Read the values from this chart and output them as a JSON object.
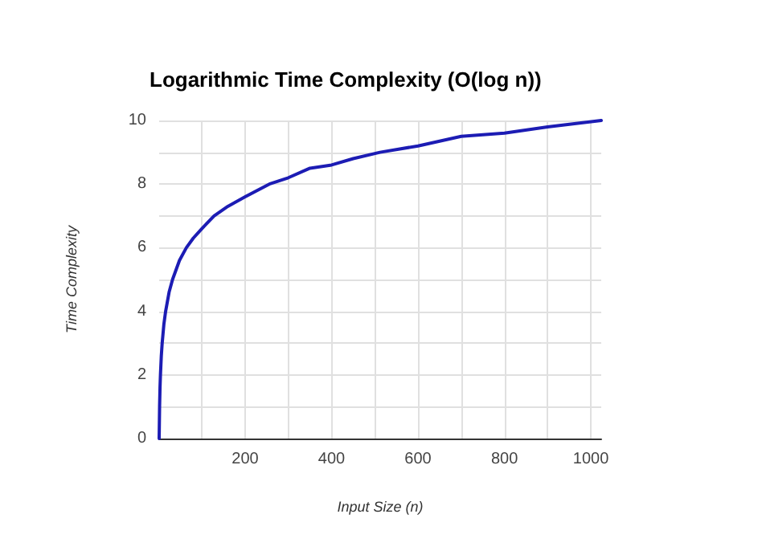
{
  "chart_data": {
    "type": "line",
    "title": "Logarithmic Time Complexity (O(log n))",
    "xlabel": "Input Size (n)",
    "ylabel": "Time Complexity",
    "x": [
      1,
      2,
      3,
      4,
      6,
      8,
      12,
      16,
      24,
      32,
      48,
      64,
      80,
      100,
      128,
      160,
      200,
      256,
      300,
      350,
      400,
      450,
      512,
      600,
      700,
      800,
      900,
      1024
    ],
    "series": [
      {
        "color": "#1c1cb4",
        "values": [
          0,
          1,
          1.6,
          2,
          2.6,
          3,
          3.6,
          4,
          4.6,
          5,
          5.6,
          6,
          6.3,
          6.6,
          7,
          7.3,
          7.6,
          8,
          8.2,
          8.5,
          8.6,
          8.8,
          9,
          9.2,
          9.5,
          9.6,
          9.8,
          10
        ]
      }
    ],
    "xlim": [
      1,
      1024
    ],
    "ylim": [
      0,
      10
    ],
    "xticks": [
      {
        "value": 100,
        "label": null
      },
      200,
      {
        "value": 300,
        "label": null
      },
      400,
      {
        "value": 500,
        "label": null
      },
      600,
      {
        "value": 700,
        "label": null
      },
      800,
      {
        "value": 900,
        "label": null
      },
      1000
    ],
    "yticks": [
      0,
      {
        "value": 1,
        "label": null
      },
      2,
      {
        "value": 3,
        "label": null
      },
      4,
      {
        "value": 5,
        "label": null
      },
      6,
      {
        "value": 7,
        "label": null
      },
      8,
      {
        "value": 9,
        "label": null
      },
      10
    ],
    "grid": true,
    "marker": "none",
    "line_style": "solid"
  }
}
